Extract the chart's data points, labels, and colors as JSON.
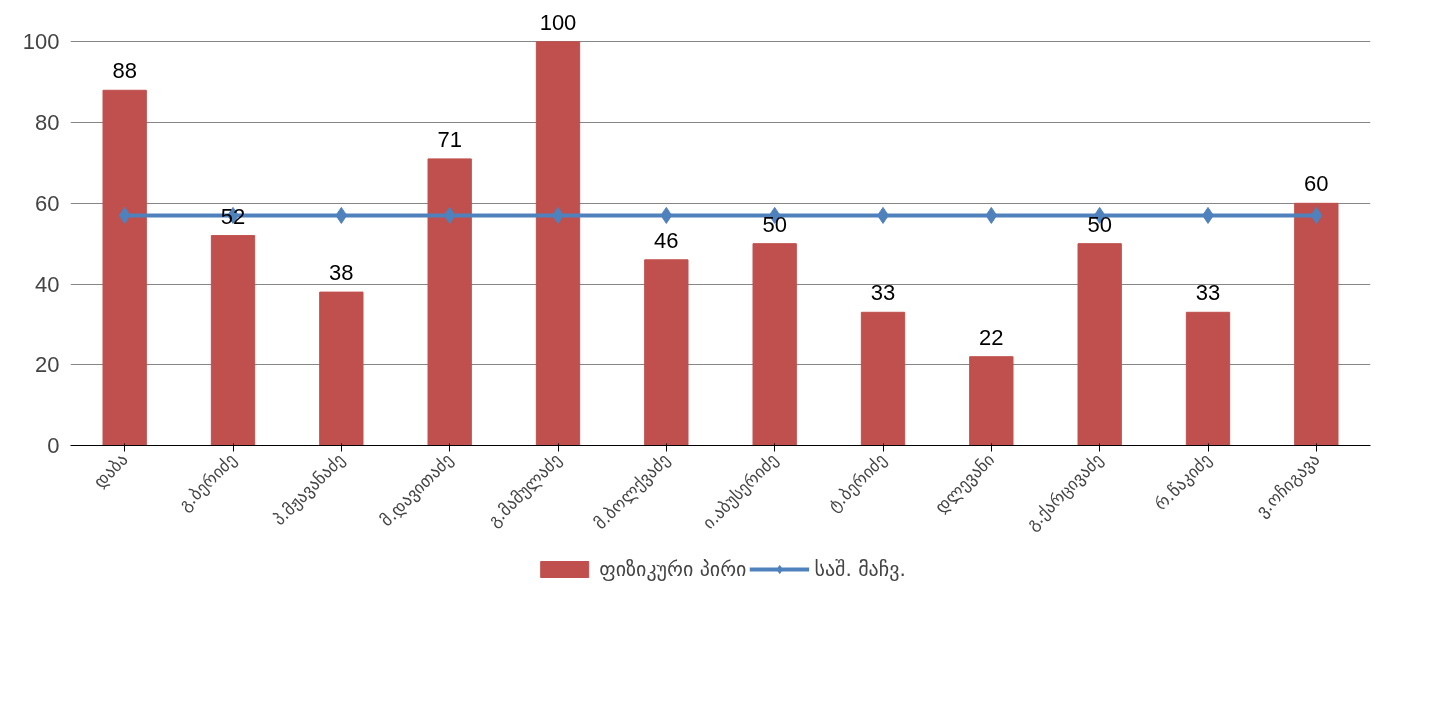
{
  "chart_data": {
    "type": "bar",
    "categories": [
      "დაბა",
      "გ.ბერიძე",
      "პ.მჟავანაძე",
      "მ.დავითაძე",
      "გ.მამულაძე",
      "მ.ბოლქვაძე",
      "ი.აბუსერიძე",
      "ტ.ბერიძე",
      "დლევანი",
      "გ.ქარცივაძე",
      "რ.წაკიძე",
      "ვ.ოჩიგავა"
    ],
    "series": [
      {
        "name": "ფიზიკური პირი",
        "color": "#c0504d",
        "values": [
          88,
          52,
          38,
          71,
          100,
          46,
          50,
          33,
          22,
          50,
          33,
          60
        ],
        "data_labels": true
      },
      {
        "name": "საშ. მაჩვ.",
        "color": "#4f81bd",
        "type": "line",
        "marker": "diamond",
        "values": [
          57,
          57,
          57,
          57,
          57,
          57,
          57,
          57,
          57,
          57,
          57,
          57
        ]
      }
    ],
    "ylim": [
      0,
      100
    ],
    "yticks": [
      0,
      20,
      40,
      60,
      80,
      100
    ],
    "grid": "y",
    "legend": "bottom"
  }
}
